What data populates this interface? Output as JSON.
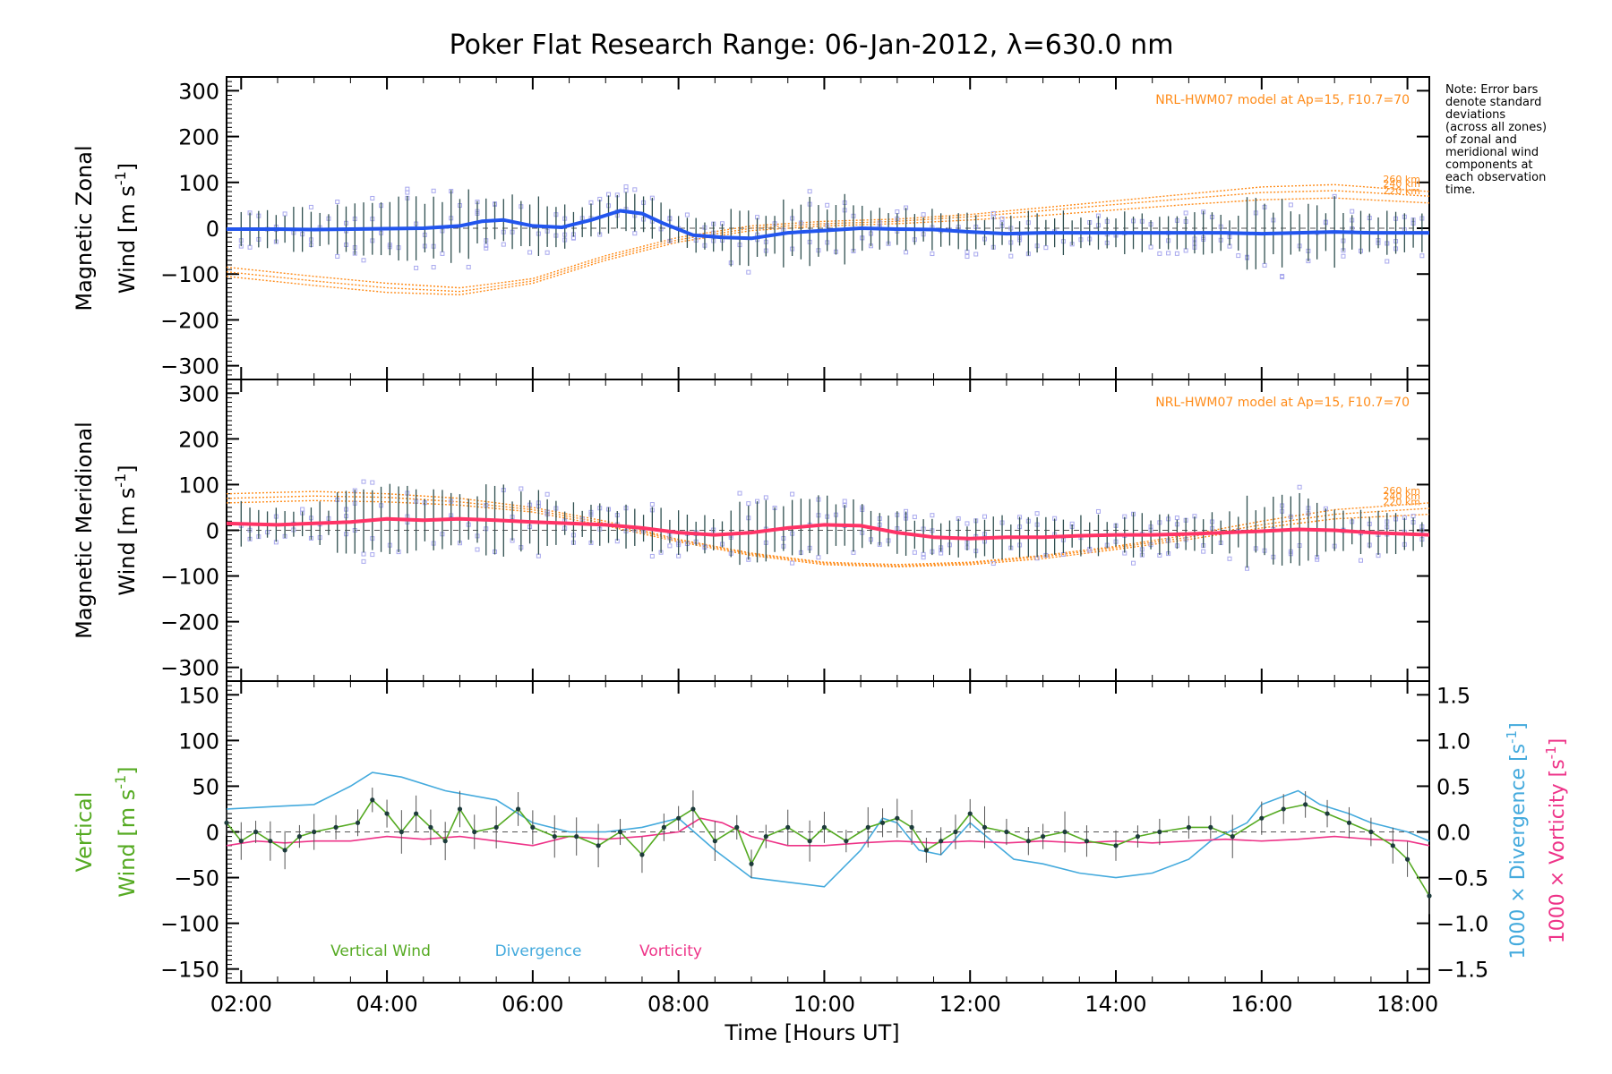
{
  "title": "Poker Flat Research Range: 06-Jan-2012, λ=630.0 nm",
  "note": [
    "Note: Error bars",
    "denote standard",
    "deviations",
    "(across all zones)",
    "of zonal and",
    "meridional wind",
    "components at",
    "each observation",
    "time."
  ],
  "x_ticks": [
    "02:00",
    "04:00",
    "06:00",
    "08:00",
    "10:00",
    "12:00",
    "14:00",
    "16:00",
    "18:00"
  ],
  "x_label": "Time [Hours UT]",
  "colors": {
    "zonal_line": "#2255ee",
    "meridional_line": "#ff3366",
    "vertical": "#55aa22",
    "divergence": "#44aadd",
    "vorticity": "#ee3388",
    "model": "#ff8c1a",
    "scatter": "#a8a8ee",
    "errorbar": "#2f4f4f"
  },
  "panels": {
    "zonal": {
      "ylabel_line1": "Magnetic Zonal",
      "ylabel_line2": "Wind [m s",
      "ylabel_sup": "-1",
      "ylabel_close": "]",
      "model_label": "NRL-HWM07 model at Ap=15, F10.7=70",
      "alt_labels": [
        "260 km",
        "240 km",
        "220 km"
      ],
      "y_ticks": [
        "300",
        "200",
        "100",
        "0",
        "−100",
        "−200",
        "−300"
      ]
    },
    "meridional": {
      "ylabel_line1": "Magnetic Meridional",
      "ylabel_line2": "Wind [m s",
      "ylabel_sup": "-1",
      "ylabel_close": "]",
      "model_label": "NRL-HWM07 model at Ap=15, F10.7=70",
      "alt_labels": [
        "260 km",
        "240 km",
        "220 km"
      ],
      "y_ticks": [
        "300",
        "200",
        "100",
        "0",
        "−100",
        "−200",
        "−300"
      ]
    },
    "vertical": {
      "ylabel_line1": "Vertical",
      "ylabel_line2": "Wind [m s",
      "ylabel_sup": "-1",
      "ylabel_close": "]",
      "y_ticks": [
        "150",
        "100",
        "50",
        "0",
        "−50",
        "−100",
        "−150"
      ],
      "y2_ticks": [
        "1.5",
        "1.0",
        "0.5",
        "0.0",
        "−0.5",
        "−1.0",
        "−1.5"
      ],
      "div_label": "1000 × Divergence [s",
      "vort_label": "1000 × Vorticity [s",
      "legend": [
        "Vertical Wind",
        "Divergence",
        "Vorticity"
      ]
    }
  },
  "chart_data": [
    {
      "type": "line",
      "name": "zonal",
      "xlim": [
        1.8,
        18.3
      ],
      "ylim": [
        -330,
        330
      ],
      "x": [
        1.8,
        2.5,
        3.0,
        3.5,
        4.0,
        4.5,
        5.0,
        5.3,
        5.6,
        6.0,
        6.4,
        6.8,
        7.2,
        7.5,
        7.8,
        8.2,
        8.6,
        9.0,
        9.5,
        10.0,
        10.5,
        11.0,
        11.5,
        12.0,
        12.5,
        13.0,
        13.5,
        14.0,
        14.5,
        15.0,
        15.5,
        16.0,
        16.5,
        17.0,
        17.5,
        18.3
      ],
      "y": [
        -2,
        -2,
        -3,
        -2,
        -1,
        0,
        5,
        15,
        18,
        5,
        2,
        18,
        38,
        32,
        10,
        -15,
        -20,
        -22,
        -10,
        -5,
        0,
        -2,
        -3,
        -8,
        -12,
        -10,
        -10,
        -10,
        -10,
        -10,
        -10,
        -12,
        -10,
        -8,
        -10,
        -10
      ],
      "models": [
        {
          "label": "260 km",
          "x": [
            1.8,
            3,
            4,
            5,
            6,
            7,
            8,
            9,
            10,
            11,
            12,
            13,
            14,
            15,
            16,
            17,
            18.3
          ],
          "y": [
            -85,
            -105,
            -120,
            -130,
            -110,
            -60,
            -20,
            5,
            15,
            20,
            30,
            45,
            60,
            75,
            90,
            95,
            80
          ]
        },
        {
          "label": "240 km",
          "x": [
            1.8,
            3,
            4,
            5,
            6,
            7,
            8,
            9,
            10,
            11,
            12,
            13,
            14,
            15,
            16,
            17,
            18.3
          ],
          "y": [
            -95,
            -115,
            -130,
            -138,
            -115,
            -65,
            -25,
            0,
            10,
            15,
            25,
            38,
            52,
            65,
            78,
            82,
            70
          ]
        },
        {
          "label": "220 km",
          "x": [
            1.8,
            3,
            4,
            5,
            6,
            7,
            8,
            9,
            10,
            11,
            12,
            13,
            14,
            15,
            16,
            17,
            18.3
          ],
          "y": [
            -105,
            -125,
            -140,
            -145,
            -120,
            -70,
            -30,
            -5,
            5,
            10,
            18,
            28,
            40,
            52,
            62,
            66,
            55
          ]
        }
      ]
    },
    {
      "type": "line",
      "name": "meridional",
      "xlim": [
        1.8,
        18.3
      ],
      "ylim": [
        -330,
        330
      ],
      "x": [
        1.8,
        2.5,
        3.0,
        3.5,
        4.0,
        4.5,
        5.0,
        5.5,
        6.0,
        6.5,
        7.0,
        7.5,
        8.0,
        8.5,
        9.0,
        9.5,
        10.0,
        10.5,
        11.0,
        11.5,
        12.0,
        12.5,
        13.0,
        13.5,
        14.0,
        14.5,
        15.0,
        15.5,
        16.0,
        16.5,
        17.0,
        17.5,
        18.3
      ],
      "y": [
        15,
        12,
        15,
        18,
        25,
        22,
        25,
        22,
        18,
        15,
        12,
        5,
        -5,
        -10,
        -5,
        5,
        12,
        10,
        -5,
        -15,
        -18,
        -15,
        -15,
        -12,
        -10,
        -10,
        -8,
        -5,
        -2,
        2,
        0,
        -5,
        -10
      ],
      "models": [
        {
          "label": "260 km",
          "x": [
            1.8,
            3,
            4,
            5,
            6,
            7,
            8,
            9,
            10,
            11,
            12,
            13,
            14,
            15,
            16,
            17,
            18.3
          ],
          "y": [
            80,
            85,
            80,
            70,
            50,
            20,
            -20,
            -50,
            -70,
            -75,
            -70,
            -55,
            -35,
            -10,
            20,
            45,
            60
          ]
        },
        {
          "label": "240 km",
          "x": [
            1.8,
            3,
            4,
            5,
            6,
            7,
            8,
            9,
            10,
            11,
            12,
            13,
            14,
            15,
            16,
            17,
            18.3
          ],
          "y": [
            70,
            75,
            72,
            62,
            45,
            15,
            -22,
            -52,
            -72,
            -78,
            -72,
            -58,
            -38,
            -15,
            12,
            35,
            48
          ]
        },
        {
          "label": "220 km",
          "x": [
            1.8,
            3,
            4,
            5,
            6,
            7,
            8,
            9,
            10,
            11,
            12,
            13,
            14,
            15,
            16,
            17,
            18.3
          ],
          "y": [
            60,
            65,
            62,
            55,
            40,
            10,
            -25,
            -55,
            -75,
            -80,
            -75,
            -62,
            -42,
            -20,
            5,
            25,
            35
          ]
        }
      ]
    },
    {
      "type": "line",
      "name": "vertical",
      "xlim": [
        1.8,
        18.3
      ],
      "ylim": [
        -165,
        165
      ],
      "y2lim": [
        -1.65,
        1.65
      ],
      "series": [
        {
          "name": "Vertical Wind",
          "axis": "left",
          "x": [
            1.8,
            2.0,
            2.2,
            2.4,
            2.6,
            2.8,
            3.0,
            3.3,
            3.6,
            3.8,
            4.0,
            4.2,
            4.4,
            4.6,
            4.8,
            5.0,
            5.2,
            5.5,
            5.8,
            6.0,
            6.3,
            6.6,
            6.9,
            7.2,
            7.5,
            7.8,
            8.0,
            8.2,
            8.5,
            8.8,
            9.0,
            9.2,
            9.5,
            9.8,
            10.0,
            10.3,
            10.6,
            10.8,
            11.0,
            11.2,
            11.4,
            11.6,
            11.8,
            12.0,
            12.2,
            12.5,
            12.8,
            13.0,
            13.3,
            13.6,
            14.0,
            14.3,
            14.6,
            15.0,
            15.3,
            15.6,
            16.0,
            16.3,
            16.6,
            16.9,
            17.2,
            17.5,
            17.8,
            18.0,
            18.3
          ],
          "y": [
            10,
            -10,
            0,
            -10,
            -20,
            -5,
            0,
            5,
            10,
            35,
            20,
            0,
            20,
            5,
            -10,
            25,
            0,
            5,
            25,
            5,
            -5,
            -5,
            -15,
            0,
            -25,
            5,
            15,
            25,
            -10,
            5,
            -35,
            -5,
            5,
            -10,
            5,
            -10,
            5,
            10,
            15,
            5,
            -20,
            -10,
            0,
            20,
            5,
            0,
            -10,
            -5,
            0,
            -10,
            -15,
            -5,
            0,
            5,
            5,
            -5,
            15,
            25,
            30,
            20,
            10,
            0,
            -15,
            -30,
            -70
          ]
        },
        {
          "name": "Divergence",
          "axis": "right",
          "x": [
            1.8,
            2.5,
            3.0,
            3.5,
            3.8,
            4.2,
            4.8,
            5.5,
            6.0,
            6.5,
            7.0,
            7.5,
            8.0,
            8.5,
            9.0,
            9.5,
            10.0,
            10.5,
            10.8,
            11.0,
            11.3,
            11.6,
            12.0,
            12.3,
            12.6,
            13.0,
            13.5,
            14.0,
            14.5,
            15.0,
            15.3,
            15.8,
            16.0,
            16.5,
            16.8,
            17.2,
            17.5,
            18.0,
            18.3
          ],
          "y": [
            0.25,
            0.28,
            0.3,
            0.5,
            0.65,
            0.6,
            0.45,
            0.35,
            0.1,
            0.0,
            0.0,
            0.05,
            0.15,
            -0.2,
            -0.5,
            -0.55,
            -0.6,
            -0.2,
            0.15,
            0.1,
            -0.2,
            -0.25,
            0.1,
            -0.1,
            -0.3,
            -0.35,
            -0.45,
            -0.5,
            -0.45,
            -0.3,
            -0.1,
            0.1,
            0.3,
            0.45,
            0.3,
            0.2,
            0.1,
            0.0,
            -0.1
          ]
        },
        {
          "name": "Vorticity",
          "axis": "right",
          "x": [
            1.8,
            2.2,
            2.6,
            3.0,
            3.5,
            4.0,
            4.5,
            5.0,
            5.5,
            6.0,
            6.5,
            7.0,
            7.5,
            8.0,
            8.3,
            8.6,
            9.0,
            9.5,
            10.0,
            10.5,
            11.0,
            11.5,
            12.0,
            12.5,
            13.0,
            13.5,
            14.0,
            14.5,
            15.0,
            15.5,
            16.0,
            16.5,
            17.0,
            17.5,
            18.0,
            18.3
          ],
          "y": [
            -0.15,
            -0.1,
            -0.12,
            -0.1,
            -0.1,
            -0.05,
            -0.08,
            -0.05,
            -0.1,
            -0.15,
            -0.05,
            -0.08,
            -0.05,
            0.0,
            0.15,
            0.1,
            -0.05,
            -0.15,
            -0.15,
            -0.12,
            -0.1,
            -0.12,
            -0.1,
            -0.12,
            -0.1,
            -0.12,
            -0.1,
            -0.12,
            -0.1,
            -0.08,
            -0.1,
            -0.08,
            -0.05,
            -0.08,
            -0.1,
            -0.15
          ]
        }
      ]
    }
  ]
}
